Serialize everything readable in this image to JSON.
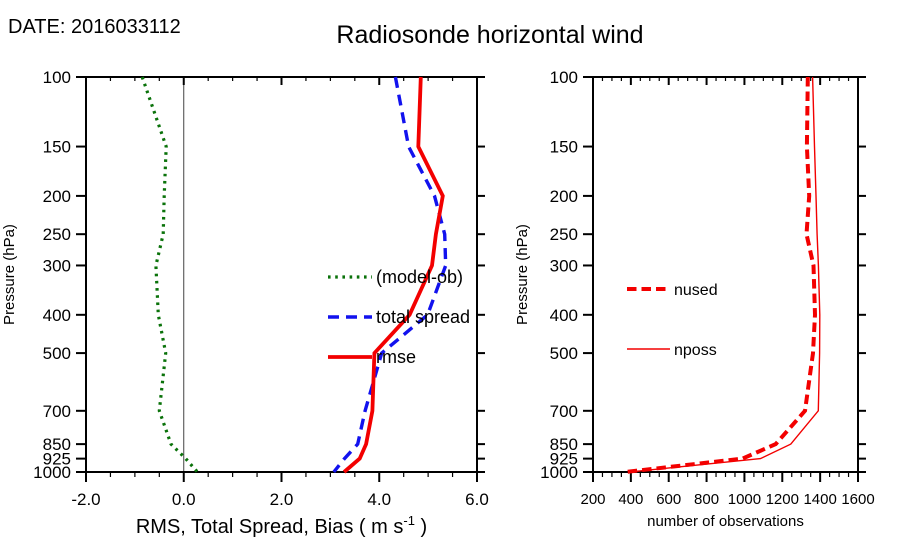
{
  "header": {
    "date_label": "DATE: 2016033112",
    "title": "Radiosonde horizontal wind"
  },
  "colors": {
    "bias": "#0a720a",
    "spread": "#1212ee",
    "rmse": "#f30000",
    "obs": "#f30000",
    "axis": "#000000",
    "zero_line": "#444444"
  },
  "pressure_tick_labels": [
    "100",
    "150",
    "200",
    "250",
    "300",
    "400",
    "500",
    "700",
    "850",
    "925",
    "1000"
  ],
  "chart_data": [
    {
      "type": "line",
      "panel": "left",
      "xlabel_parts": {
        "main": "RMS, Total Spread, Bias ( m s",
        "sup": "-1",
        "end": " )"
      },
      "ylabel": "Pressure (hPa)",
      "x_axis": {
        "range": [
          -2.0,
          6.0
        ],
        "ticks": [
          -2.0,
          0.0,
          2.0,
          4.0,
          6.0
        ],
        "tick_labels": [
          "-2.0",
          "0.0",
          "2.0",
          "4.0",
          "6.0"
        ],
        "minor_step": 0.5
      },
      "y_axis": {
        "scale": "log",
        "range": [
          100,
          1000
        ],
        "inverted_down": true
      },
      "reference_line_x": 0.0,
      "pressure_levels": [
        100,
        150,
        200,
        250,
        300,
        400,
        500,
        700,
        850,
        925,
        1000
      ],
      "legend_position": "center-right",
      "series": [
        {
          "name": "(model-ob)",
          "color_key": "bias",
          "style": "dotted",
          "width": 3.2,
          "values": [
            -0.85,
            -0.36,
            -0.4,
            -0.42,
            -0.57,
            -0.52,
            -0.37,
            -0.5,
            -0.26,
            0.04,
            0.28
          ]
        },
        {
          "name": "total spread",
          "color_key": "spread",
          "style": "dashed",
          "width": 3.4,
          "values": [
            4.33,
            4.6,
            5.13,
            5.34,
            5.36,
            4.99,
            4.05,
            3.71,
            3.56,
            3.29,
            3.07
          ]
        },
        {
          "name": "rmse",
          "color_key": "rmse",
          "style": "solid",
          "width": 3.8,
          "values": [
            4.85,
            4.8,
            5.3,
            5.16,
            5.08,
            4.62,
            3.9,
            3.86,
            3.73,
            3.6,
            3.28
          ]
        }
      ]
    },
    {
      "type": "line",
      "panel": "right",
      "xlabel_parts": {
        "main": "number of observations",
        "sup": "",
        "end": ""
      },
      "ylabel": "Pressure (hPa)",
      "x_axis": {
        "range": [
          200,
          1600
        ],
        "ticks": [
          200,
          400,
          600,
          800,
          1000,
          1200,
          1400,
          1600
        ],
        "tick_labels": [
          "200",
          "400",
          "600",
          "800",
          "1000",
          "1200",
          "1400",
          "1600"
        ],
        "minor_step": 50
      },
      "y_axis": {
        "scale": "log",
        "range": [
          100,
          1000
        ],
        "inverted_down": true
      },
      "pressure_levels": [
        100,
        150,
        200,
        250,
        300,
        400,
        500,
        700,
        850,
        925,
        1000
      ],
      "legend_position": "center-left",
      "series": [
        {
          "name": "nused",
          "color_key": "obs",
          "style": "dashed-thick",
          "width": 4.0,
          "values": [
            1335,
            1330,
            1342,
            1328,
            1365,
            1373,
            1362,
            1320,
            1165,
            990,
            370
          ]
        },
        {
          "name": "nposs",
          "color_key": "obs",
          "style": "thin",
          "width": 1.4,
          "values": [
            1360,
            1370,
            1378,
            1384,
            1391,
            1398,
            1397,
            1390,
            1245,
            1085,
            395
          ]
        }
      ]
    }
  ]
}
